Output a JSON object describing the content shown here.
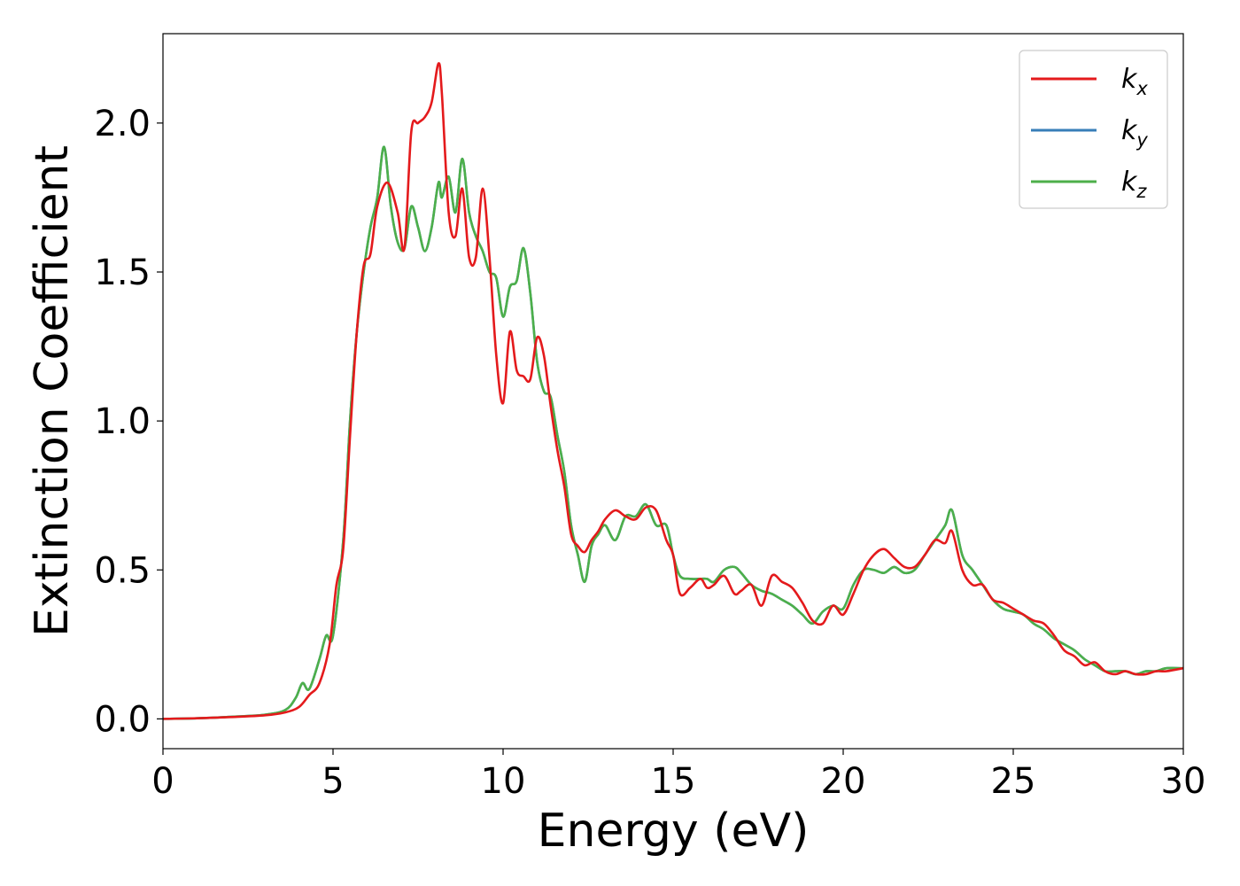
{
  "chart_data": {
    "type": "line",
    "xlabel": "Energy (eV)",
    "ylabel": "Extinction Coefficient",
    "xlim": [
      0,
      30
    ],
    "ylim": [
      -0.1,
      2.3
    ],
    "xticks": [
      "0",
      "5",
      "10",
      "15",
      "20",
      "25",
      "30"
    ],
    "yticks": [
      "0.0",
      "0.5",
      "1.0",
      "1.5",
      "2.0"
    ],
    "grid": false,
    "legend_position": "top-right",
    "series": [
      {
        "name": "k_x",
        "legend_base": "k",
        "legend_sub": "x",
        "color": "#e41a1c",
        "x": [
          0,
          1,
          2,
          3,
          3.6,
          4.0,
          4.3,
          4.6,
          4.9,
          5.1,
          5.3,
          5.5,
          5.7,
          5.9,
          6.1,
          6.3,
          6.6,
          6.9,
          7.1,
          7.3,
          7.5,
          7.7,
          7.9,
          8.1,
          8.2,
          8.4,
          8.6,
          8.8,
          9.0,
          9.2,
          9.4,
          9.6,
          9.8,
          10.0,
          10.2,
          10.4,
          10.6,
          10.8,
          11.0,
          11.2,
          11.4,
          11.6,
          11.8,
          12.0,
          12.2,
          12.4,
          12.6,
          12.8,
          13.0,
          13.3,
          13.6,
          13.9,
          14.2,
          14.5,
          14.8,
          15.0,
          15.2,
          15.5,
          15.8,
          16.0,
          16.2,
          16.5,
          16.8,
          17.0,
          17.3,
          17.6,
          17.9,
          18.2,
          18.5,
          18.8,
          19.1,
          19.4,
          19.7,
          20.0,
          20.3,
          20.6,
          20.9,
          21.2,
          21.5,
          21.8,
          22.1,
          22.4,
          22.7,
          23.0,
          23.2,
          23.5,
          23.8,
          24.1,
          24.4,
          24.7,
          25.0,
          25.3,
          25.6,
          25.9,
          26.2,
          26.5,
          26.8,
          27.1,
          27.4,
          27.7,
          28.0,
          28.3,
          28.6,
          28.9,
          29.2,
          29.5,
          30
        ],
        "y": [
          0.0,
          0.002,
          0.006,
          0.012,
          0.022,
          0.04,
          0.08,
          0.12,
          0.25,
          0.45,
          0.57,
          0.95,
          1.3,
          1.52,
          1.56,
          1.72,
          1.8,
          1.7,
          1.58,
          1.97,
          2.0,
          2.02,
          2.07,
          2.2,
          2.1,
          1.7,
          1.62,
          1.78,
          1.55,
          1.55,
          1.78,
          1.55,
          1.22,
          1.06,
          1.3,
          1.17,
          1.15,
          1.14,
          1.28,
          1.22,
          1.05,
          0.9,
          0.78,
          0.62,
          0.58,
          0.56,
          0.6,
          0.63,
          0.67,
          0.7,
          0.68,
          0.67,
          0.71,
          0.7,
          0.6,
          0.55,
          0.42,
          0.44,
          0.47,
          0.44,
          0.45,
          0.48,
          0.42,
          0.43,
          0.45,
          0.38,
          0.48,
          0.46,
          0.44,
          0.39,
          0.33,
          0.32,
          0.38,
          0.35,
          0.42,
          0.5,
          0.55,
          0.57,
          0.54,
          0.51,
          0.51,
          0.55,
          0.6,
          0.59,
          0.63,
          0.5,
          0.45,
          0.45,
          0.4,
          0.39,
          0.37,
          0.35,
          0.33,
          0.32,
          0.28,
          0.23,
          0.21,
          0.18,
          0.19,
          0.16,
          0.15,
          0.16,
          0.15,
          0.15,
          0.16,
          0.16,
          0.17
        ]
      },
      {
        "name": "k_y",
        "legend_base": "k",
        "legend_sub": "y",
        "color": "#377eb8",
        "x": [
          0,
          1,
          2,
          3,
          3.6,
          3.9,
          4.1,
          4.3,
          4.6,
          4.8,
          5.0,
          5.3,
          5.5,
          5.7,
          5.9,
          6.1,
          6.3,
          6.5,
          6.7,
          6.9,
          7.1,
          7.3,
          7.5,
          7.7,
          7.9,
          8.1,
          8.2,
          8.4,
          8.6,
          8.8,
          9.0,
          9.2,
          9.4,
          9.6,
          9.8,
          10.0,
          10.2,
          10.4,
          10.6,
          10.8,
          11.0,
          11.2,
          11.4,
          11.6,
          11.8,
          12.0,
          12.2,
          12.4,
          12.6,
          12.8,
          13.0,
          13.3,
          13.6,
          13.9,
          14.2,
          14.5,
          14.8,
          15.0,
          15.2,
          15.5,
          15.8,
          16.0,
          16.2,
          16.5,
          16.8,
          17.0,
          17.3,
          17.6,
          17.9,
          18.2,
          18.5,
          18.8,
          19.1,
          19.4,
          19.7,
          20.0,
          20.3,
          20.6,
          20.9,
          21.2,
          21.5,
          21.8,
          22.1,
          22.4,
          22.7,
          23.0,
          23.2,
          23.5,
          23.8,
          24.1,
          24.4,
          24.7,
          25.0,
          25.3,
          25.6,
          25.9,
          26.2,
          26.5,
          26.8,
          27.1,
          27.4,
          27.7,
          28.0,
          28.3,
          28.6,
          28.9,
          29.2,
          29.5,
          30
        ],
        "y": [
          0.0,
          0.002,
          0.007,
          0.014,
          0.03,
          0.07,
          0.12,
          0.1,
          0.2,
          0.28,
          0.28,
          0.6,
          1.0,
          1.3,
          1.5,
          1.65,
          1.75,
          1.92,
          1.72,
          1.6,
          1.58,
          1.72,
          1.65,
          1.57,
          1.65,
          1.8,
          1.75,
          1.82,
          1.7,
          1.88,
          1.7,
          1.62,
          1.57,
          1.5,
          1.48,
          1.35,
          1.45,
          1.47,
          1.58,
          1.43,
          1.2,
          1.1,
          1.08,
          0.95,
          0.83,
          0.65,
          0.55,
          0.46,
          0.58,
          0.62,
          0.65,
          0.6,
          0.68,
          0.68,
          0.72,
          0.65,
          0.65,
          0.55,
          0.48,
          0.47,
          0.47,
          0.47,
          0.46,
          0.5,
          0.51,
          0.49,
          0.45,
          0.43,
          0.42,
          0.4,
          0.38,
          0.35,
          0.32,
          0.36,
          0.38,
          0.37,
          0.45,
          0.5,
          0.5,
          0.49,
          0.51,
          0.49,
          0.5,
          0.55,
          0.6,
          0.65,
          0.7,
          0.55,
          0.5,
          0.45,
          0.4,
          0.37,
          0.36,
          0.35,
          0.32,
          0.3,
          0.27,
          0.25,
          0.23,
          0.2,
          0.18,
          0.16,
          0.16,
          0.16,
          0.15,
          0.16,
          0.16,
          0.17,
          0.17
        ]
      },
      {
        "name": "k_z",
        "legend_base": "k",
        "legend_sub": "z",
        "color": "#4daf4a",
        "x": [
          0,
          1,
          2,
          3,
          3.6,
          3.9,
          4.1,
          4.3,
          4.6,
          4.8,
          5.0,
          5.3,
          5.5,
          5.7,
          5.9,
          6.1,
          6.3,
          6.5,
          6.7,
          6.9,
          7.1,
          7.3,
          7.5,
          7.7,
          7.9,
          8.1,
          8.2,
          8.4,
          8.6,
          8.8,
          9.0,
          9.2,
          9.4,
          9.6,
          9.8,
          10.0,
          10.2,
          10.4,
          10.6,
          10.8,
          11.0,
          11.2,
          11.4,
          11.6,
          11.8,
          12.0,
          12.2,
          12.4,
          12.6,
          12.8,
          13.0,
          13.3,
          13.6,
          13.9,
          14.2,
          14.5,
          14.8,
          15.0,
          15.2,
          15.5,
          15.8,
          16.0,
          16.2,
          16.5,
          16.8,
          17.0,
          17.3,
          17.6,
          17.9,
          18.2,
          18.5,
          18.8,
          19.1,
          19.4,
          19.7,
          20.0,
          20.3,
          20.6,
          20.9,
          21.2,
          21.5,
          21.8,
          22.1,
          22.4,
          22.7,
          23.0,
          23.2,
          23.5,
          23.8,
          24.1,
          24.4,
          24.7,
          25.0,
          25.3,
          25.6,
          25.9,
          26.2,
          26.5,
          26.8,
          27.1,
          27.4,
          27.7,
          28.0,
          28.3,
          28.6,
          28.9,
          29.2,
          29.5,
          30
        ],
        "y": [
          0.0,
          0.002,
          0.007,
          0.014,
          0.03,
          0.07,
          0.12,
          0.1,
          0.2,
          0.28,
          0.28,
          0.6,
          1.0,
          1.3,
          1.5,
          1.65,
          1.75,
          1.92,
          1.72,
          1.6,
          1.58,
          1.72,
          1.65,
          1.57,
          1.65,
          1.8,
          1.75,
          1.82,
          1.7,
          1.88,
          1.7,
          1.62,
          1.57,
          1.5,
          1.48,
          1.35,
          1.45,
          1.47,
          1.58,
          1.43,
          1.2,
          1.1,
          1.08,
          0.95,
          0.83,
          0.65,
          0.55,
          0.46,
          0.58,
          0.62,
          0.65,
          0.6,
          0.68,
          0.68,
          0.72,
          0.65,
          0.65,
          0.55,
          0.48,
          0.47,
          0.47,
          0.47,
          0.46,
          0.5,
          0.51,
          0.49,
          0.45,
          0.43,
          0.42,
          0.4,
          0.38,
          0.35,
          0.32,
          0.36,
          0.38,
          0.37,
          0.45,
          0.5,
          0.5,
          0.49,
          0.51,
          0.49,
          0.5,
          0.55,
          0.6,
          0.65,
          0.7,
          0.55,
          0.5,
          0.45,
          0.4,
          0.37,
          0.36,
          0.35,
          0.32,
          0.3,
          0.27,
          0.25,
          0.23,
          0.2,
          0.18,
          0.16,
          0.16,
          0.16,
          0.15,
          0.16,
          0.16,
          0.17,
          0.17
        ]
      }
    ]
  }
}
